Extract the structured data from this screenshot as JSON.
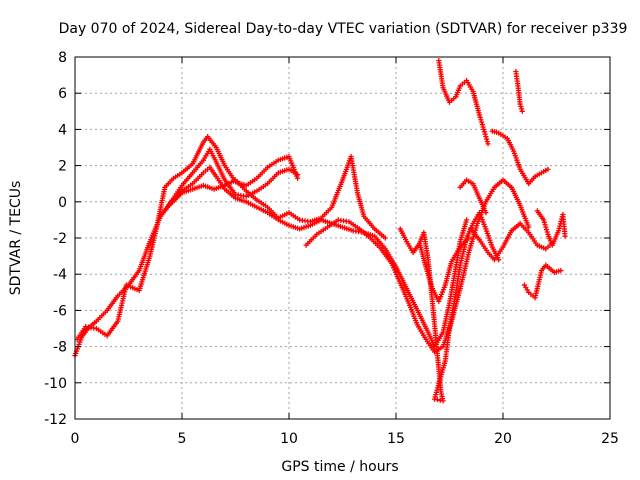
{
  "chart_data": {
    "type": "scatter",
    "title": "Day 070 of 2024, Sidereal Day-to-day VTEC variation (SDTVAR) for receiver p339",
    "xlabel": "GPS time / hours",
    "ylabel": "SDTVAR / TECUs",
    "xlim": [
      0,
      25
    ],
    "ylim": [
      -12,
      8
    ],
    "xticks": [
      0,
      5,
      10,
      15,
      20,
      25
    ],
    "yticks": [
      -12,
      -10,
      -8,
      -6,
      -4,
      -2,
      0,
      2,
      4,
      6,
      8
    ],
    "xtick_labels": [
      "0",
      "5",
      "10",
      "15",
      "20",
      "25"
    ],
    "ytick_labels": [
      "-12",
      "-10",
      "-8",
      "-6",
      "-4",
      "-2",
      "0",
      "2",
      "4",
      "6",
      "8"
    ],
    "grid": true,
    "marker": "+",
    "color": "#ff0000",
    "series": [
      {
        "points": [
          [
            0.0,
            -8.5
          ],
          [
            0.3,
            -7.5
          ],
          [
            0.6,
            -7.0
          ],
          [
            1.0,
            -6.6
          ],
          [
            1.5,
            -6.0
          ],
          [
            2.0,
            -5.2
          ],
          [
            2.5,
            -4.6
          ],
          [
            3.0,
            -3.8
          ],
          [
            3.5,
            -2.2
          ],
          [
            4.0,
            -0.8
          ],
          [
            4.5,
            0.0
          ],
          [
            5.0,
            0.6
          ],
          [
            5.5,
            1.0
          ],
          [
            6.0,
            1.6
          ],
          [
            6.3,
            1.9
          ],
          [
            6.6,
            1.4
          ],
          [
            7.0,
            0.7
          ],
          [
            7.5,
            0.2
          ],
          [
            8.0,
            0.0
          ],
          [
            8.5,
            -0.3
          ],
          [
            9.0,
            -0.6
          ],
          [
            9.5,
            -1.0
          ],
          [
            10.0,
            -1.3
          ],
          [
            10.5,
            -1.5
          ],
          [
            11.0,
            -1.3
          ],
          [
            11.5,
            -1.0
          ],
          [
            12.0,
            -1.2
          ],
          [
            12.5,
            -1.4
          ],
          [
            13.0,
            -1.6
          ],
          [
            13.5,
            -1.7
          ],
          [
            14.0,
            -1.9
          ],
          [
            14.5,
            -2.6
          ],
          [
            15.0,
            -3.6
          ],
          [
            15.5,
            -4.8
          ],
          [
            16.0,
            -6.0
          ],
          [
            16.5,
            -7.2
          ],
          [
            16.8,
            -8.0
          ],
          [
            17.2,
            -7.2
          ],
          [
            17.5,
            -5.6
          ],
          [
            17.8,
            -3.6
          ],
          [
            18.0,
            -2.2
          ],
          [
            18.3,
            -1.0
          ]
        ]
      },
      {
        "points": [
          [
            0.1,
            -7.6
          ],
          [
            0.5,
            -6.9
          ],
          [
            1.0,
            -7.0
          ],
          [
            1.5,
            -7.4
          ],
          [
            2.0,
            -6.6
          ],
          [
            2.4,
            -4.6
          ],
          [
            3.0,
            -4.9
          ],
          [
            3.5,
            -3.0
          ],
          [
            3.8,
            -1.5
          ],
          [
            4.2,
            0.8
          ],
          [
            4.6,
            1.3
          ],
          [
            5.0,
            1.6
          ],
          [
            5.5,
            2.1
          ],
          [
            6.0,
            3.3
          ],
          [
            6.2,
            3.6
          ],
          [
            6.6,
            3.0
          ],
          [
            7.0,
            2.0
          ],
          [
            7.5,
            1.1
          ],
          [
            8.0,
            0.9
          ],
          [
            8.5,
            1.3
          ],
          [
            9.0,
            1.9
          ],
          [
            9.5,
            2.3
          ],
          [
            10.0,
            2.5
          ],
          [
            10.4,
            1.3
          ]
        ]
      },
      {
        "points": [
          [
            4.2,
            -0.5
          ],
          [
            4.6,
            0.2
          ],
          [
            5.0,
            0.9
          ],
          [
            5.5,
            1.6
          ],
          [
            6.0,
            2.3
          ],
          [
            6.3,
            2.9
          ],
          [
            6.6,
            2.2
          ],
          [
            7.0,
            1.2
          ],
          [
            7.5,
            0.4
          ],
          [
            8.0,
            0.3
          ],
          [
            8.5,
            0.6
          ],
          [
            9.0,
            1.0
          ],
          [
            9.5,
            1.6
          ],
          [
            10.0,
            1.8
          ],
          [
            10.4,
            1.5
          ]
        ]
      },
      {
        "points": [
          [
            4.4,
            -0.2
          ],
          [
            5.0,
            0.5
          ],
          [
            5.5,
            0.7
          ],
          [
            6.0,
            0.9
          ],
          [
            6.5,
            0.7
          ],
          [
            7.0,
            0.9
          ],
          [
            7.5,
            1.2
          ],
          [
            8.0,
            0.6
          ],
          [
            8.5,
            0.1
          ],
          [
            9.0,
            -0.3
          ],
          [
            9.5,
            -0.9
          ],
          [
            10.0,
            -0.6
          ],
          [
            10.5,
            -1.0
          ],
          [
            11.0,
            -1.1
          ],
          [
            11.5,
            -0.9
          ],
          [
            12.0,
            -0.3
          ],
          [
            12.5,
            1.2
          ],
          [
            12.9,
            2.5
          ],
          [
            13.2,
            0.5
          ],
          [
            13.5,
            -0.8
          ],
          [
            14.0,
            -1.5
          ],
          [
            14.5,
            -2.0
          ]
        ]
      },
      {
        "points": [
          [
            10.8,
            -2.4
          ],
          [
            11.3,
            -1.8
          ],
          [
            11.8,
            -1.4
          ],
          [
            12.3,
            -1.0
          ],
          [
            12.8,
            -1.1
          ],
          [
            13.3,
            -1.5
          ],
          [
            13.8,
            -2.0
          ],
          [
            14.3,
            -2.6
          ],
          [
            14.8,
            -3.4
          ],
          [
            15.2,
            -4.5
          ],
          [
            15.6,
            -5.6
          ],
          [
            16.0,
            -6.8
          ],
          [
            16.4,
            -7.6
          ],
          [
            16.8,
            -8.3
          ],
          [
            17.2,
            -8.0
          ],
          [
            17.6,
            -6.6
          ],
          [
            18.0,
            -4.8
          ],
          [
            18.4,
            -2.8
          ],
          [
            18.8,
            -1.2
          ],
          [
            19.2,
            0.0
          ],
          [
            19.6,
            0.8
          ],
          [
            20.0,
            1.2
          ],
          [
            20.4,
            0.8
          ],
          [
            20.8,
            -0.2
          ],
          [
            21.2,
            -1.4
          ]
        ]
      },
      {
        "points": [
          [
            15.2,
            -1.5
          ],
          [
            15.5,
            -2.2
          ],
          [
            15.8,
            -2.8
          ],
          [
            16.1,
            -2.3
          ],
          [
            16.3,
            -1.7
          ],
          [
            16.5,
            -3.2
          ],
          [
            16.7,
            -5.5
          ],
          [
            16.9,
            -8.0
          ],
          [
            17.1,
            -10.5
          ],
          [
            17.2,
            -11.0
          ],
          [
            16.8,
            -10.9
          ],
          [
            17.3,
            -8.8
          ],
          [
            17.5,
            -7.0
          ],
          [
            17.8,
            -5.0
          ],
          [
            18.0,
            -3.5
          ],
          [
            18.3,
            -2.0
          ],
          [
            18.6,
            -1.2
          ],
          [
            18.9,
            -0.6
          ],
          [
            19.2,
            -1.5
          ],
          [
            19.5,
            -2.5
          ],
          [
            19.8,
            -3.2
          ]
        ]
      },
      {
        "points": [
          [
            17.0,
            7.8
          ],
          [
            17.2,
            6.3
          ],
          [
            17.5,
            5.5
          ],
          [
            17.8,
            5.8
          ],
          [
            18.0,
            6.4
          ],
          [
            18.3,
            6.7
          ],
          [
            18.6,
            6.1
          ],
          [
            18.9,
            4.8
          ],
          [
            19.1,
            4.0
          ],
          [
            19.3,
            3.2
          ]
        ]
      },
      {
        "points": [
          [
            19.5,
            3.9
          ],
          [
            19.8,
            3.8
          ],
          [
            20.2,
            3.5
          ],
          [
            20.5,
            2.8
          ],
          [
            20.8,
            1.8
          ],
          [
            21.2,
            1.0
          ],
          [
            21.5,
            1.4
          ],
          [
            21.8,
            1.6
          ],
          [
            22.1,
            1.8
          ]
        ]
      },
      {
        "points": [
          [
            18.0,
            0.8
          ],
          [
            18.3,
            1.2
          ],
          [
            18.6,
            1.0
          ],
          [
            18.9,
            0.2
          ],
          [
            19.2,
            -0.6
          ]
        ]
      },
      {
        "points": [
          [
            20.6,
            7.2
          ],
          [
            20.7,
            6.4
          ],
          [
            20.8,
            5.4
          ],
          [
            20.9,
            5.0
          ]
        ]
      },
      {
        "points": [
          [
            18.5,
            -1.5
          ],
          [
            18.9,
            -2.1
          ],
          [
            19.3,
            -2.8
          ],
          [
            19.6,
            -3.2
          ],
          [
            20.0,
            -2.5
          ],
          [
            20.4,
            -1.6
          ],
          [
            20.8,
            -1.2
          ],
          [
            21.2,
            -1.7
          ],
          [
            21.6,
            -2.4
          ],
          [
            22.0,
            -2.6
          ],
          [
            22.3,
            -2.3
          ]
        ]
      },
      {
        "points": [
          [
            21.0,
            -4.6
          ],
          [
            21.2,
            -5.0
          ],
          [
            21.5,
            -5.3
          ],
          [
            21.8,
            -3.8
          ],
          [
            22.0,
            -3.5
          ],
          [
            22.4,
            -3.9
          ],
          [
            22.7,
            -3.8
          ]
        ]
      },
      {
        "points": [
          [
            21.6,
            -0.5
          ],
          [
            21.9,
            -1.0
          ],
          [
            22.1,
            -1.8
          ],
          [
            22.3,
            -2.4
          ],
          [
            22.6,
            -1.6
          ],
          [
            22.8,
            -0.7
          ],
          [
            22.9,
            -1.9
          ]
        ]
      },
      {
        "points": [
          [
            16.1,
            -2.3
          ],
          [
            16.4,
            -3.6
          ],
          [
            16.7,
            -4.8
          ],
          [
            17.0,
            -5.5
          ],
          [
            17.3,
            -4.6
          ],
          [
            17.6,
            -3.3
          ],
          [
            18.0,
            -2.5
          ],
          [
            18.4,
            -2.0
          ]
        ]
      }
    ]
  }
}
